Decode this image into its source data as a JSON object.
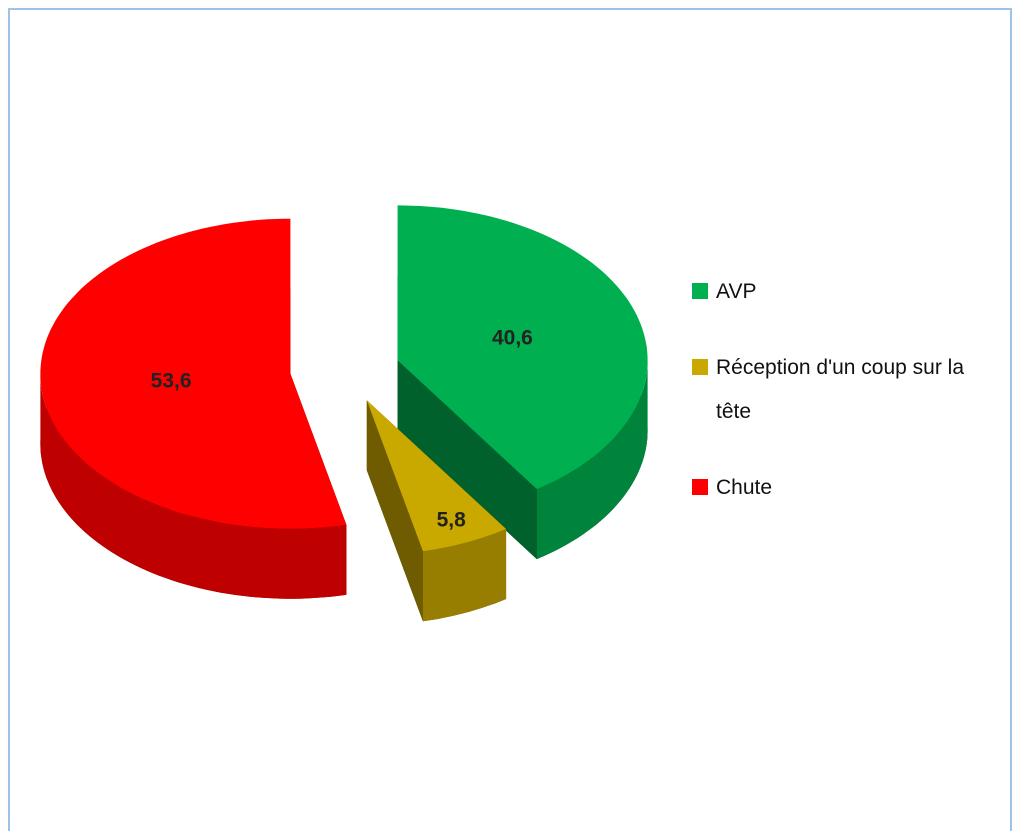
{
  "chart_data": {
    "type": "pie",
    "categories": [
      "AVP",
      "Réception d'un coup sur la tête",
      "Chute"
    ],
    "values": [
      40.6,
      5.8,
      53.6
    ],
    "value_labels": [
      "40,6",
      "5,8",
      "53,6"
    ],
    "colors": [
      "#00b050",
      "#c9a800",
      "#ff0000"
    ],
    "legend": "right"
  }
}
